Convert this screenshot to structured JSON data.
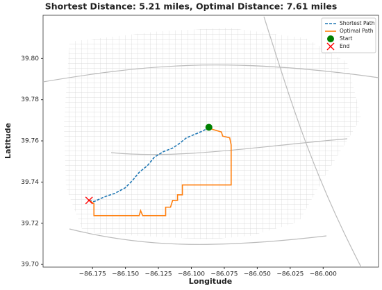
{
  "chart_data": {
    "type": "line",
    "title": "Shortest Distance: 5.21 miles, Optimal Distance: 7.61 miles",
    "x_label": "Longitude",
    "y_label": "Latitude",
    "xlim": [
      -86.2125,
      -85.958
    ],
    "ylim": [
      39.6987,
      39.821
    ],
    "xticks": [
      {
        "value": -86.175,
        "label": "−86.175"
      },
      {
        "value": -86.15,
        "label": "−86.150"
      },
      {
        "value": -86.125,
        "label": "−86.125"
      },
      {
        "value": -86.1,
        "label": "−86.100"
      },
      {
        "value": -86.075,
        "label": "−86.075"
      },
      {
        "value": -86.05,
        "label": "−86.050"
      },
      {
        "value": -86.025,
        "label": "−86.025"
      },
      {
        "value": -86.0,
        "label": "−86.000"
      }
    ],
    "yticks": [
      {
        "value": 39.7,
        "label": "39.70"
      },
      {
        "value": 39.72,
        "label": "39.72"
      },
      {
        "value": 39.74,
        "label": "39.74"
      },
      {
        "value": 39.76,
        "label": "39.76"
      },
      {
        "value": 39.78,
        "label": "39.78"
      },
      {
        "value": 39.8,
        "label": "39.80"
      }
    ],
    "legend": "upper right",
    "series": [
      {
        "name": "Shortest Path",
        "color": "#1f77b4",
        "style": "dashed",
        "x": [
          -86.1776,
          -86.1739,
          -86.166,
          -86.1581,
          -86.1502,
          -86.1449,
          -86.1396,
          -86.1333,
          -86.128,
          -86.1211,
          -86.1142,
          -86.1089,
          -86.1037,
          -86.0973,
          -86.091,
          -86.0867
        ],
        "y": [
          39.7311,
          39.7305,
          39.7328,
          39.7345,
          39.7372,
          39.7406,
          39.7447,
          39.748,
          39.7521,
          39.7548,
          39.7565,
          39.7588,
          39.7615,
          39.7632,
          39.7649,
          39.7666
        ]
      },
      {
        "name": "Optimal Path",
        "color": "#ff7f0e",
        "style": "solid",
        "x": [
          -86.0867,
          -86.0841,
          -86.0772,
          -86.0762,
          -86.0709,
          -86.0698,
          -86.0698,
          -86.1068,
          -86.1068,
          -86.1105,
          -86.1105,
          -86.1142,
          -86.1158,
          -86.1195,
          -86.1195,
          -86.1369,
          -86.1385,
          -86.1396,
          -86.1739,
          -86.1739,
          -86.1776
        ],
        "y": [
          39.7666,
          39.7656,
          39.7643,
          39.7623,
          39.7615,
          39.7581,
          39.7386,
          39.7386,
          39.7338,
          39.7338,
          39.7311,
          39.7311,
          39.7278,
          39.7278,
          39.7237,
          39.7237,
          39.7261,
          39.7237,
          39.7237,
          39.7295,
          39.7311
        ]
      },
      {
        "name": "Start",
        "color": "#008000",
        "style": "circle",
        "x": [
          -86.0867
        ],
        "y": [
          39.7666
        ]
      },
      {
        "name": "End",
        "color": "#ff0000",
        "style": "cross",
        "x": [
          -86.1776
        ],
        "y": [
          39.7311
        ]
      }
    ]
  }
}
